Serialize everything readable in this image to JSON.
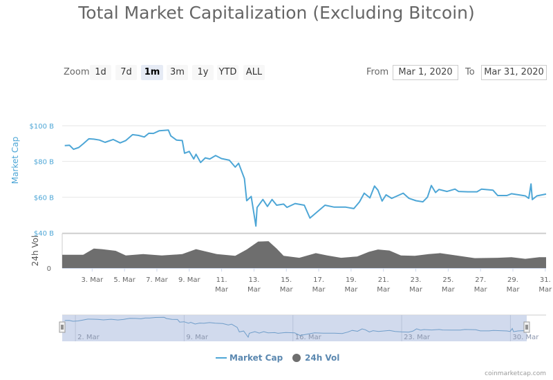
{
  "chart_data": {
    "type": "line",
    "title": "Total Market Capitalization (Excluding Bitcoin)",
    "xlabel": "",
    "x_unit": "day of March 2020",
    "xlim": [
      1.15,
      31.05
    ],
    "x_ticks": [
      {
        "day": 3,
        "label": "3. Mar"
      },
      {
        "day": 5,
        "label": "5. Mar"
      },
      {
        "day": 7,
        "label": "7. Mar"
      },
      {
        "day": 9,
        "label": "9. Mar"
      },
      {
        "day": 11,
        "label": "11. Mar"
      },
      {
        "day": 13,
        "label": "13. Mar"
      },
      {
        "day": 15,
        "label": "15. Mar"
      },
      {
        "day": 17,
        "label": "17. Mar"
      },
      {
        "day": 19,
        "label": "19. Mar"
      },
      {
        "day": 21,
        "label": "21. Mar"
      },
      {
        "day": 23,
        "label": "23. Mar"
      },
      {
        "day": 25,
        "label": "25. Mar"
      },
      {
        "day": 27,
        "label": "27. Mar"
      },
      {
        "day": 29,
        "label": "29. Mar"
      },
      {
        "day": 31,
        "label": "31. Mar"
      }
    ],
    "series": [
      {
        "name": "Market Cap",
        "ylabel": "Market Cap",
        "unit": "$B",
        "color": "#4da6d6",
        "ylim": [
          40,
          100
        ],
        "y_ticks": [
          {
            "value": 100,
            "label": "$100 B"
          },
          {
            "value": 80,
            "label": "$80 B"
          },
          {
            "value": 60,
            "label": "$60 B"
          },
          {
            "value": 40,
            "label": "$40 B"
          }
        ],
        "x": [
          1.31,
          1.6,
          1.85,
          2.17,
          2.45,
          2.8,
          3.1,
          3.45,
          3.8,
          4.3,
          4.73,
          5.08,
          5.5,
          5.87,
          6.22,
          6.5,
          6.79,
          7.15,
          7.71,
          7.86,
          8.21,
          8.57,
          8.71,
          9.0,
          9.28,
          9.42,
          9.7,
          9.99,
          10.27,
          10.63,
          10.99,
          11.48,
          11.84,
          12.05,
          12.41,
          12.55,
          12.83,
          13.12,
          13.19,
          13.55,
          13.83,
          14.12,
          14.4,
          14.83,
          15.04,
          15.54,
          16.11,
          16.46,
          16.89,
          17.39,
          17.96,
          18.67,
          19.17,
          19.52,
          19.81,
          20.16,
          20.45,
          20.66,
          20.92,
          21.16,
          21.51,
          22.22,
          22.58,
          23.01,
          23.44,
          23.72,
          23.96,
          24.22,
          24.43,
          24.93,
          25.42,
          25.64,
          26.21,
          26.78,
          27.06,
          27.77,
          28.06,
          28.63,
          28.91,
          29.77,
          29.98,
          30.12,
          30.2,
          30.48,
          31.05
        ],
        "values": [
          88.9,
          89.1,
          86.8,
          87.8,
          89.9,
          92.7,
          92.5,
          92.0,
          90.7,
          92.3,
          90.4,
          91.7,
          95.0,
          94.6,
          93.7,
          95.8,
          95.7,
          97.2,
          97.6,
          94.3,
          92.0,
          91.7,
          84.6,
          85.6,
          81.4,
          84.0,
          79.4,
          82.0,
          81.4,
          83.3,
          81.6,
          80.7,
          76.8,
          79.0,
          70.4,
          58.0,
          60.4,
          43.8,
          54.2,
          58.7,
          54.8,
          58.7,
          55.5,
          56.1,
          54.3,
          56.4,
          55.5,
          48.3,
          51.6,
          55.5,
          54.4,
          54.4,
          53.6,
          57.4,
          62.2,
          59.6,
          66.2,
          63.9,
          57.8,
          61.3,
          59.3,
          62.2,
          59.3,
          58.0,
          57.4,
          60.0,
          66.5,
          62.6,
          64.3,
          63.2,
          64.5,
          63.2,
          63.0,
          63.0,
          64.5,
          63.9,
          60.9,
          60.9,
          61.9,
          60.7,
          59.3,
          67.4,
          58.6,
          60.7,
          61.7
        ]
      },
      {
        "name": "24h Vol",
        "ylabel": "24h Vol",
        "unit": "relative (0-100 of panel)",
        "color": "#6e6e6e",
        "ylim": [
          0,
          100
        ],
        "y_ticks": [
          {
            "value": 0,
            "label": "0"
          }
        ],
        "x": [
          1.15,
          1.31,
          2.45,
          3.1,
          3.6,
          4.45,
          5.08,
          6.15,
          7.3,
          8.57,
          9.42,
          10.7,
          11.84,
          12.55,
          13.26,
          13.9,
          14.4,
          14.83,
          15.8,
          16.82,
          17.53,
          18.38,
          19.38,
          20.1,
          20.66,
          21.37,
          22.08,
          22.94,
          23.8,
          24.5,
          25.5,
          26.64,
          28.06,
          28.91,
          29.77,
          30.63,
          31.05
        ],
        "values": [
          40,
          40,
          40,
          59,
          57,
          52,
          38,
          42,
          38,
          42,
          57,
          42,
          37,
          56,
          80,
          81,
          59,
          37,
          31,
          45,
          38,
          31,
          35,
          49,
          56,
          53,
          38,
          37,
          42,
          45,
          38,
          30,
          31,
          33,
          28,
          33,
          33
        ]
      }
    ],
    "legend": {
      "placement": "bottom-center",
      "items": [
        "Market Cap",
        "24h Vol"
      ]
    },
    "navigator": {
      "x_ticks": [
        {
          "day": 2,
          "label": "2. Mar"
        },
        {
          "day": 9,
          "label": "9. Mar"
        },
        {
          "day": 16,
          "label": "16. Mar"
        },
        {
          "day": 23,
          "label": "23. Mar"
        },
        {
          "day": 30,
          "label": "30. Mar"
        }
      ],
      "fill_color": "#ccd6eb"
    }
  },
  "range_selector": {
    "zoom_label": "Zoom",
    "buttons": [
      "1d",
      "7d",
      "1m",
      "3m",
      "1y",
      "YTD",
      "ALL"
    ],
    "active": "1m",
    "from_label": "From",
    "from_value": "Mar 1, 2020",
    "to_label": "To",
    "to_value": "Mar 31, 2020"
  },
  "credit": "coinmarketcap.com"
}
